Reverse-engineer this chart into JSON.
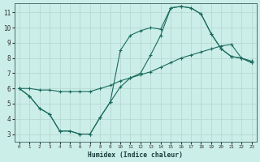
{
  "xlabel": "Humidex (Indice chaleur)",
  "background_color": "#cceee8",
  "grid_color": "#b8d8d2",
  "line_color": "#1a6b5e",
  "xlim": [
    -0.5,
    23.5
  ],
  "ylim": [
    2.5,
    11.6
  ],
  "xticks": [
    0,
    1,
    2,
    3,
    4,
    5,
    6,
    7,
    8,
    9,
    10,
    11,
    12,
    13,
    14,
    15,
    16,
    17,
    18,
    19,
    20,
    21,
    22,
    23
  ],
  "yticks": [
    3,
    4,
    5,
    6,
    7,
    8,
    9,
    10,
    11
  ],
  "curve1_x": [
    0,
    1,
    2,
    3,
    4,
    5,
    6,
    7,
    8,
    9,
    10,
    11,
    12,
    13,
    14,
    15,
    16,
    17,
    18,
    19,
    20,
    21,
    22,
    23
  ],
  "curve1_y": [
    6.0,
    5.5,
    4.7,
    4.3,
    3.2,
    3.2,
    3.0,
    3.0,
    4.1,
    5.1,
    6.1,
    6.7,
    7.0,
    8.2,
    9.5,
    11.3,
    11.4,
    11.3,
    10.9,
    9.6,
    8.6,
    8.1,
    8.0,
    7.7
  ],
  "curve2_x": [
    0,
    1,
    2,
    3,
    4,
    5,
    6,
    7,
    8,
    9,
    10,
    11,
    12,
    13,
    14,
    15,
    16,
    17,
    18,
    19,
    20,
    21,
    22,
    23
  ],
  "curve2_y": [
    6.0,
    5.5,
    4.7,
    4.3,
    3.2,
    3.2,
    3.0,
    3.0,
    4.1,
    5.1,
    8.5,
    9.5,
    9.8,
    10.0,
    9.9,
    11.3,
    11.4,
    11.3,
    10.9,
    9.6,
    8.6,
    8.1,
    8.0,
    7.7
  ],
  "curve3_x": [
    0,
    1,
    2,
    3,
    4,
    5,
    6,
    7,
    8,
    9,
    10,
    11,
    12,
    13,
    14,
    15,
    16,
    17,
    18,
    19,
    20,
    21,
    22,
    23
  ],
  "curve3_y": [
    6.0,
    6.0,
    5.9,
    5.9,
    5.8,
    5.8,
    5.8,
    5.8,
    6.0,
    6.2,
    6.5,
    6.7,
    6.9,
    7.1,
    7.4,
    7.7,
    8.0,
    8.2,
    8.4,
    8.6,
    8.8,
    8.9,
    8.0,
    7.8
  ]
}
